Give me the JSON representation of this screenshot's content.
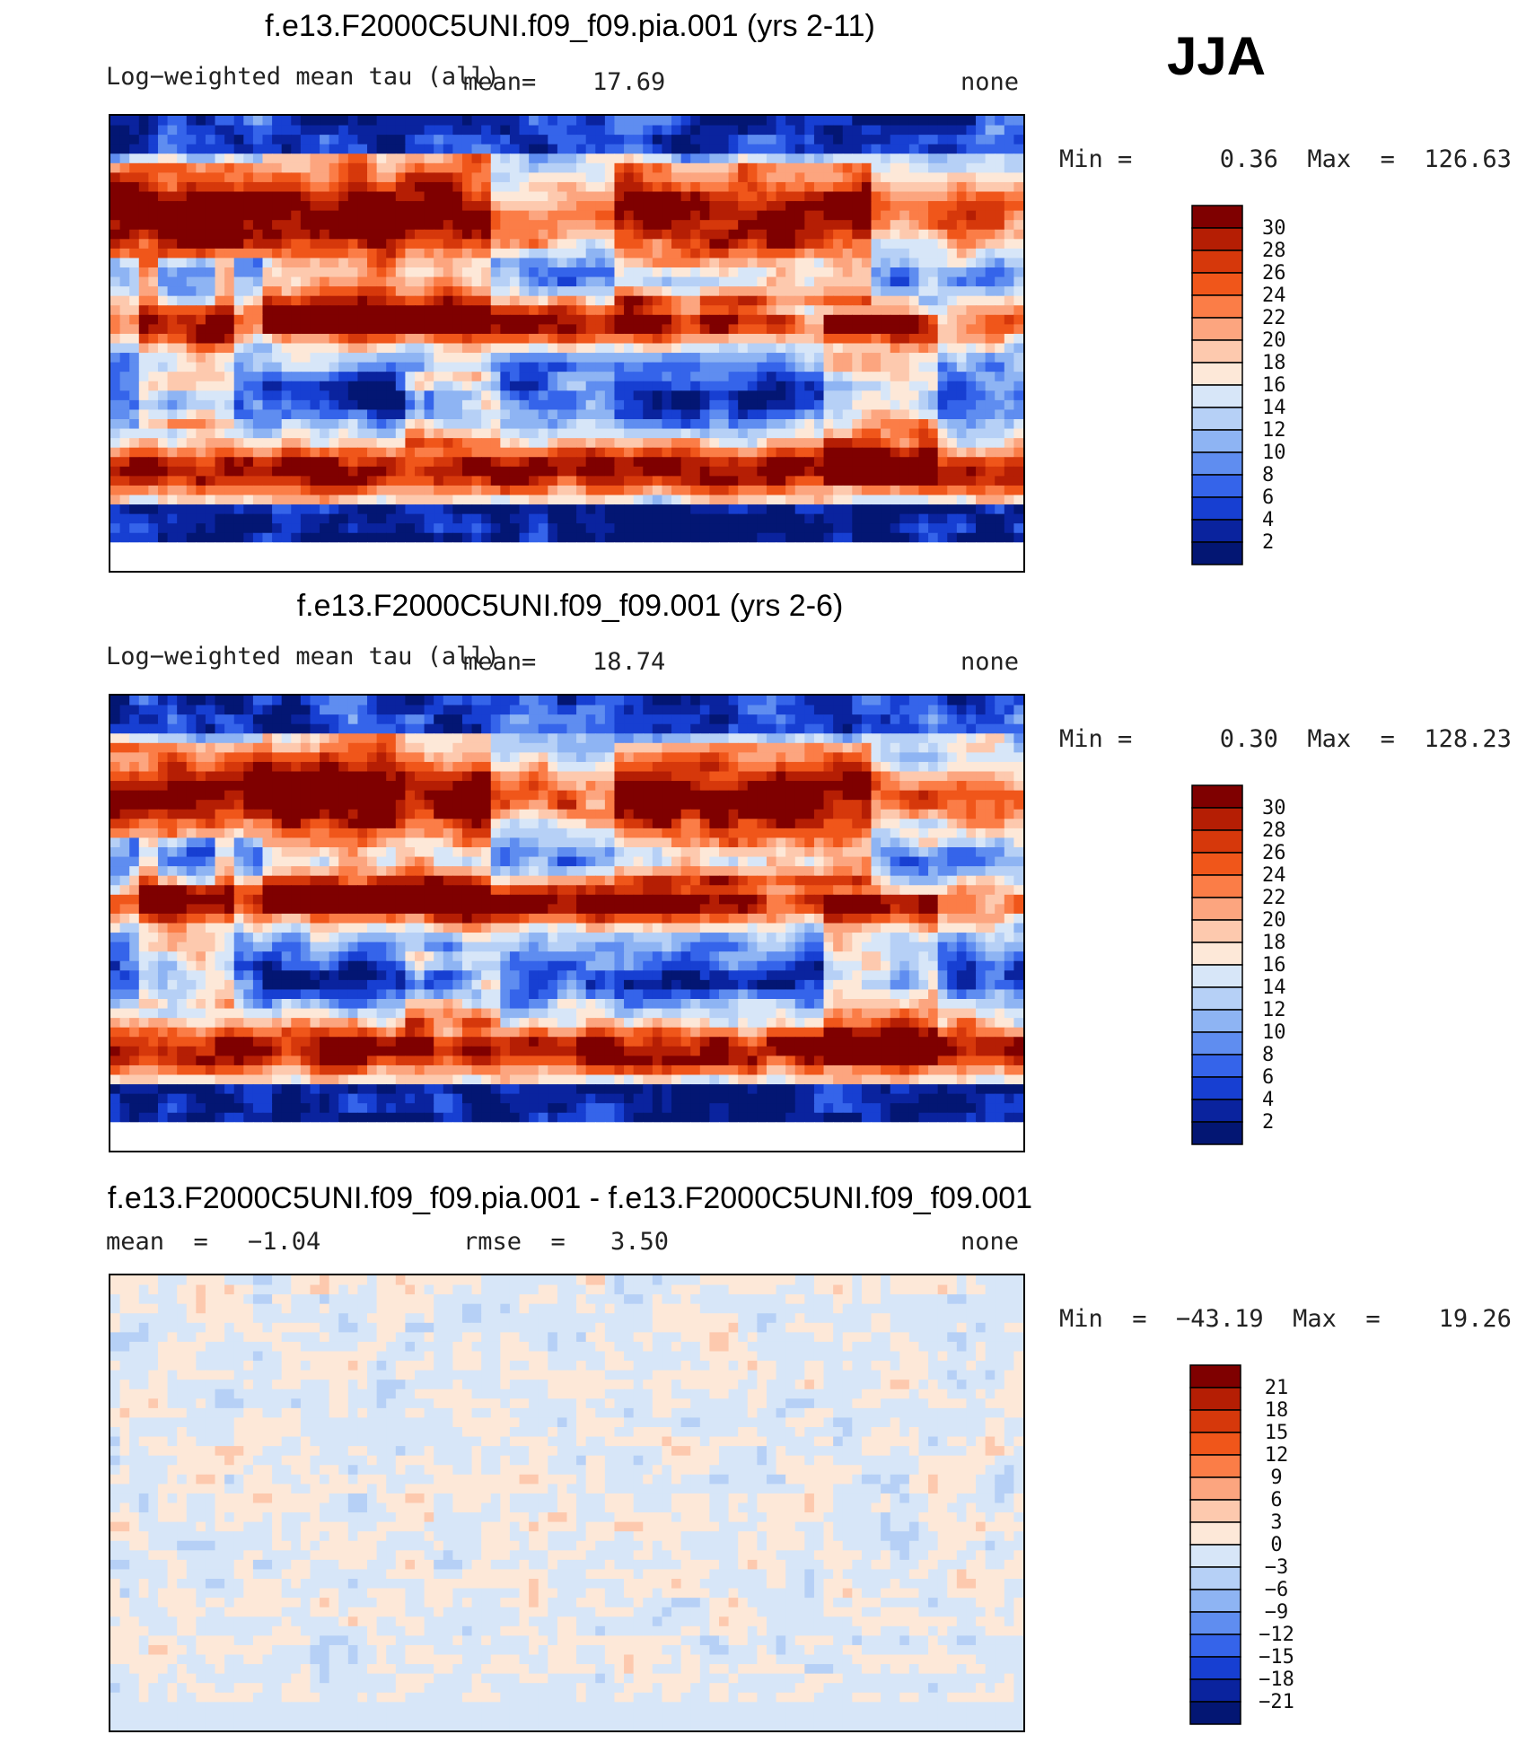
{
  "season": "JJA",
  "chart_data": [
    {
      "type": "heatmap",
      "title": "f.e13.F2000C5UNI.f09_f09.pia.001 (yrs 2-11)",
      "variable": "Log−weighted mean tau (all)",
      "mean_label": "mean=",
      "mean_value": "17.69",
      "units": "none",
      "range_text": "Min =      0.36  Max  =  126.63",
      "colorbar": {
        "labels": [
          "30",
          "28",
          "26",
          "24",
          "22",
          "20",
          "18",
          "16",
          "14",
          "12",
          "10",
          "8",
          "6",
          "4",
          "2"
        ],
        "colors": [
          "#7f0000",
          "#b51e04",
          "#d6380b",
          "#f0561a",
          "#fb7d47",
          "#fca57f",
          "#fdc9ae",
          "#fde8d8",
          "#d7e6f8",
          "#b6d0f6",
          "#8eb4f3",
          "#5f8df0",
          "#3564ea",
          "#173fd2",
          "#0a239e",
          "#031673"
        ]
      },
      "field": "optical depth, positive everywhere (0.3-130)"
    },
    {
      "type": "heatmap",
      "title": "f.e13.F2000C5UNI.f09_f09.001 (yrs 2-6)",
      "variable": "Log−weighted mean tau (all)",
      "mean_label": "mean=",
      "mean_value": "18.74",
      "units": "none",
      "range_text": "Min =      0.30  Max  =  128.23",
      "colorbar": {
        "labels": [
          "30",
          "28",
          "26",
          "24",
          "22",
          "20",
          "18",
          "16",
          "14",
          "12",
          "10",
          "8",
          "6",
          "4",
          "2"
        ],
        "colors": [
          "#7f0000",
          "#b51e04",
          "#d6380b",
          "#f0561a",
          "#fb7d47",
          "#fca57f",
          "#fdc9ae",
          "#fde8d8",
          "#d7e6f8",
          "#b6d0f6",
          "#8eb4f3",
          "#5f8df0",
          "#3564ea",
          "#173fd2",
          "#0a239e",
          "#031673"
        ]
      },
      "field": "optical depth, positive everywhere (0.3-130)"
    },
    {
      "type": "heatmap",
      "title": "f.e13.F2000C5UNI.f09_f09.pia.001 - f.e13.F2000C5UNI.f09_f09.001",
      "mean_label": "mean  =",
      "mean_value": "−1.04",
      "rmse_label": "rmse  =",
      "rmse_value": "3.50",
      "units": "none",
      "range_text": "Min  =  −43.19  Max  =    19.26",
      "colorbar": {
        "labels": [
          "21",
          "18",
          "15",
          "12",
          "9",
          "6",
          "3",
          "0",
          "−3",
          "−6",
          "−9",
          "−12",
          "−15",
          "−18",
          "−21"
        ],
        "colors": [
          "#7f0000",
          "#b51e04",
          "#d6380b",
          "#f0561a",
          "#fb7d47",
          "#fca57f",
          "#fdc9ae",
          "#fde8d8",
          "#d7e6f8",
          "#b6d0f6",
          "#8eb4f3",
          "#5f8df0",
          "#3564ea",
          "#173fd2",
          "#0a239e",
          "#031673"
        ]
      },
      "field": "difference of panel 1 minus panel 2"
    }
  ]
}
